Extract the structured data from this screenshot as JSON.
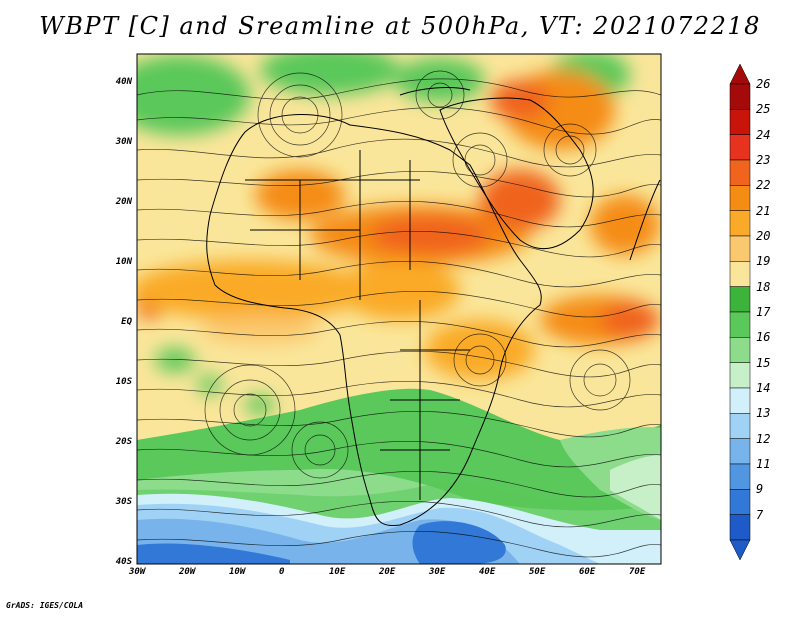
{
  "title": "WBPT [C] and Sreamline at 500hPa, VT: 2021072218",
  "credit": "GrADS: IGES/COLA",
  "map": {
    "lon_ticks": [
      "30W",
      "20W",
      "10W",
      "0",
      "10E",
      "20E",
      "30E",
      "40E",
      "50E",
      "60E",
      "70E"
    ],
    "lat_ticks": [
      "40N",
      "30N",
      "20N",
      "10N",
      "EQ",
      "10S",
      "20S",
      "30S",
      "40S"
    ]
  },
  "colorbar": {
    "labels": [
      "26",
      "25",
      "24",
      "23",
      "22",
      "21",
      "20",
      "19",
      "18",
      "17",
      "16",
      "15",
      "14",
      "13",
      "12",
      "11",
      "9",
      "7"
    ],
    "colors": [
      "#a50a0a",
      "#c8140a",
      "#e6321e",
      "#f0641e",
      "#f58c14",
      "#faaa28",
      "#fac86e",
      "#fae69a",
      "#3cb43c",
      "#5ac85a",
      "#8cdc8c",
      "#c8f0c8",
      "#d2f0fa",
      "#a0d2f5",
      "#78b4eb",
      "#5096e1",
      "#3278d7",
      "#1e5ac8"
    ]
  }
}
